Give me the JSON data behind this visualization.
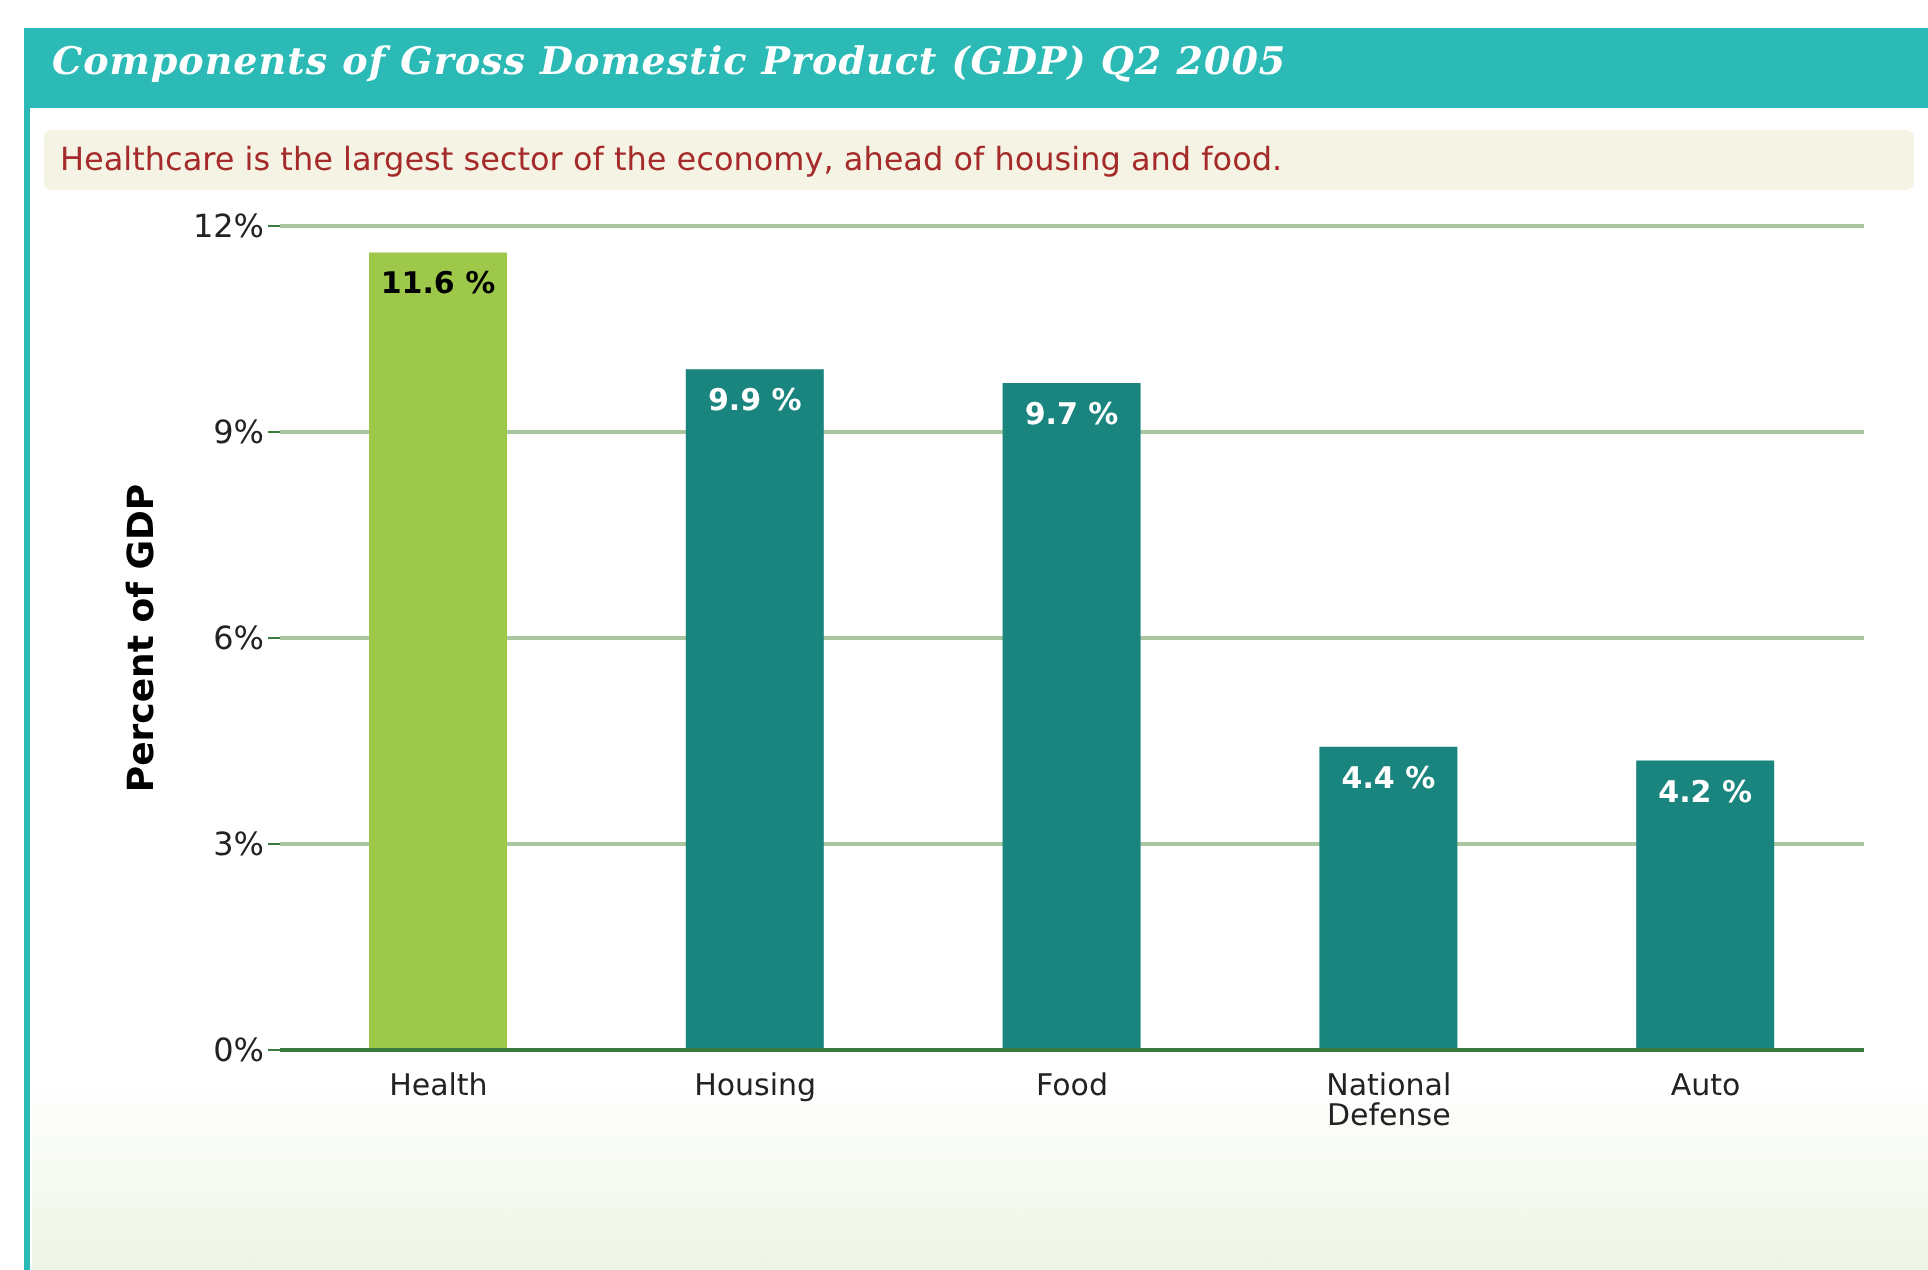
{
  "chart_data": {
    "type": "bar",
    "title": "Components of Gross Domestic Product (GDP) Q2 2005",
    "subtitle": "Healthcare is the largest sector of the economy, ahead of housing and food.",
    "ylabel": "Percent of GDP",
    "categories": [
      "Health",
      "Housing",
      "Food",
      "National Defense",
      "Auto"
    ],
    "values": [
      11.6,
      9.9,
      9.7,
      4.4,
      4.2
    ],
    "colors": [
      "#9dc84a",
      "#1a857e",
      "#1a857e",
      "#1a857e",
      "#1a857e"
    ],
    "value_labels": [
      "11.6 %",
      "9.9 %",
      "9.7 %",
      "4.4 %",
      "4.2 %"
    ],
    "ylim": [
      0,
      12
    ],
    "yticks": [
      {
        "value": 0,
        "label": "0%"
      },
      {
        "value": 3,
        "label": "3%"
      },
      {
        "value": 6,
        "label": "6%"
      },
      {
        "value": 9,
        "label": "9%"
      },
      {
        "value": 12,
        "label": "12%"
      }
    ],
    "grid": "y"
  }
}
